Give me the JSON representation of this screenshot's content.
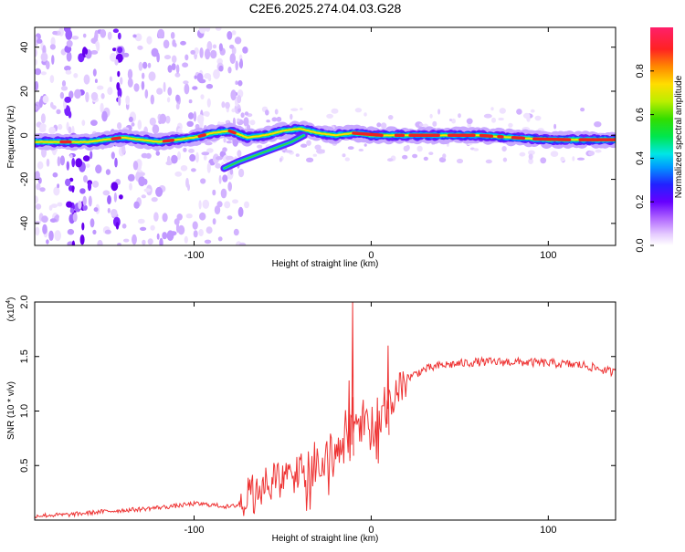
{
  "figure_title": "C2E6.2025.274.04.03.G28",
  "colors": {
    "snr_line": "#ee3333",
    "ridge_core": "#ee2222",
    "axis": "#000000"
  },
  "chart_data": [
    {
      "type": "heatmap",
      "title": "C2E6.2025.274.04.03.G28",
      "xlabel": "Height of straight line (km)",
      "ylabel": "Frequency (Hz)",
      "xlim": [
        -190,
        138
      ],
      "ylim": [
        -50,
        49
      ],
      "xticks": [
        -100,
        0,
        100
      ],
      "xtick_labels": [
        "-100",
        "0",
        "100"
      ],
      "yticks": [
        -40,
        -20,
        0,
        20,
        40
      ],
      "ytick_labels": [
        "-40",
        "-20",
        "0",
        "20",
        "40"
      ],
      "ridge": {
        "description_points_x_km": [
          -190,
          -160,
          -140,
          -120,
          -100,
          -90,
          -80,
          -70,
          -60,
          -50,
          -40,
          -30,
          -20,
          -10,
          0,
          20,
          40,
          60,
          80,
          100,
          120,
          138
        ],
        "frequency_hz": [
          -3,
          -3,
          -1,
          -3,
          -1,
          1,
          2,
          -1,
          0,
          2,
          3,
          1,
          0,
          1,
          0,
          0,
          0,
          0,
          -1,
          -2,
          -2,
          -2
        ]
      },
      "branch": {
        "x_km": [
          -83,
          -75,
          -65,
          -55,
          -45,
          -38
        ],
        "frequency_hz": [
          -15,
          -12,
          -9,
          -6,
          -3,
          0
        ]
      },
      "colorbar": {
        "label": "Normalized spectral amplitude",
        "range": [
          0.0,
          1.0
        ],
        "ticks": [
          0.0,
          0.2,
          0.4,
          0.6,
          0.8
        ],
        "tick_labels": [
          "0.0",
          "0.2",
          "0.4",
          "0.6",
          "0.8"
        ]
      }
    },
    {
      "type": "line",
      "title": "",
      "xlabel": "Height of straight line (km)",
      "ylabel": "SNR (10 * v/v)",
      "y_scale_label": "(x10",
      "y_scale_exp": "4",
      "y_scale_close": ")",
      "xlim": [
        -190,
        138
      ],
      "ylim": [
        0,
        2.0
      ],
      "xticks": [
        -100,
        0,
        100
      ],
      "xtick_labels": [
        "-100",
        "0",
        "100"
      ],
      "yticks": [
        0.5,
        1.0,
        1.5,
        2.0
      ],
      "ytick_labels": [
        "0.5",
        "1.0",
        "1.5",
        "2.0"
      ],
      "series": [
        {
          "name": "SNR",
          "x": [
            -190,
            -170,
            -150,
            -130,
            -110,
            -100,
            -90,
            -80,
            -75,
            -70,
            -60,
            -50,
            -40,
            -30,
            -20,
            -15,
            -10,
            -5,
            0,
            5,
            10,
            15,
            20,
            30,
            40,
            60,
            80,
            100,
            120,
            138
          ],
          "values": [
            0.04,
            0.05,
            0.08,
            0.1,
            0.13,
            0.15,
            0.14,
            0.12,
            0.14,
            0.25,
            0.35,
            0.4,
            0.45,
            0.55,
            0.7,
            0.85,
            0.9,
            0.95,
            0.85,
            1.0,
            1.1,
            1.25,
            1.3,
            1.38,
            1.42,
            1.45,
            1.45,
            1.44,
            1.42,
            1.35
          ]
        }
      ],
      "spikes": [
        {
          "x": -11,
          "value": 2.0
        },
        {
          "x": 9,
          "value": 1.6
        },
        {
          "x": -13,
          "value": 1.28
        }
      ]
    }
  ]
}
